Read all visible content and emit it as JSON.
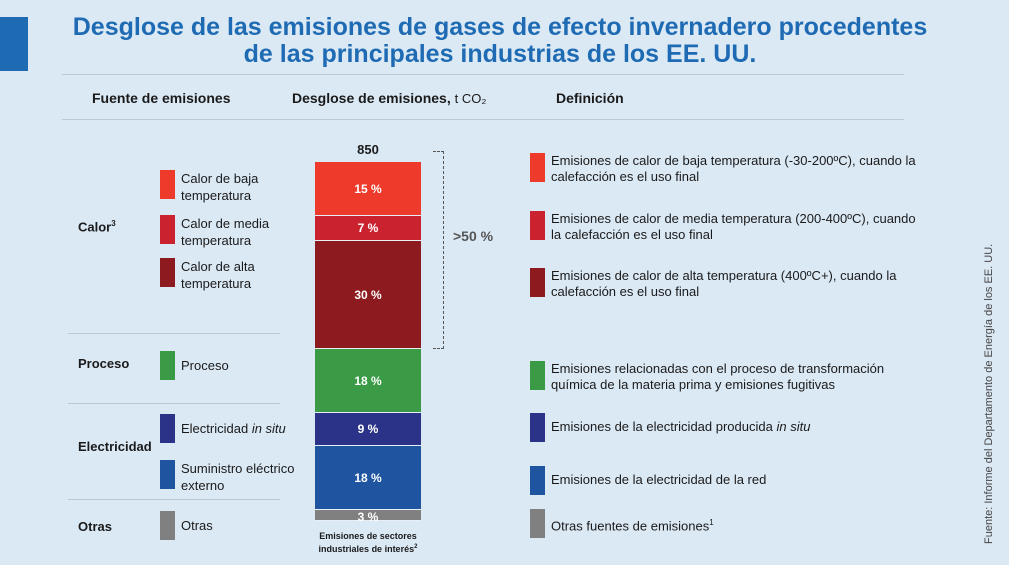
{
  "title": {
    "line1": "Desglose de las emisiones de gases de efecto invernadero procedentes",
    "line2": "de las principales industrias de los EE. UU."
  },
  "headers": {
    "source": "Fuente de emisiones",
    "breakdown": "Desglose de emisiones,",
    "breakdown_unit": "t CO₂",
    "definition": "Definición"
  },
  "categories": {
    "heat": "Calor",
    "heat_note": "3",
    "process": "Proceso",
    "electricity": "Electricidad",
    "other": "Otras"
  },
  "legend": [
    {
      "label": "Calor de baja temperatura",
      "color": "#ee3a2b"
    },
    {
      "label": "Calor de media temperatura",
      "color": "#cb2230"
    },
    {
      "label": "Calor de alta temperatura",
      "color": "#8d1a1f"
    },
    {
      "label": "Proceso",
      "color": "#3a9a46"
    },
    {
      "label_pre": "Electricidad ",
      "label_em": "in situ",
      "color": "#2a3388"
    },
    {
      "label": "Suministro eléctrico externo",
      "color": "#1f55a0"
    },
    {
      "label": "Otras",
      "color": "#808080"
    }
  ],
  "definitions": [
    {
      "text": "Emisiones de calor de baja temperatura (-30-200ºC), cuando la calefacción es el uso final"
    },
    {
      "text": "Emisiones de calor de media temperatura (200-400ºC), cuando la calefacción es el uso final"
    },
    {
      "text": "Emisiones de calor de alta temperatura (400ºC+), cuando la calefacción es el uso final"
    },
    {
      "text": "Emisiones relacionadas con el proceso de transformación química de la materia prima y emisiones fugitivas"
    },
    {
      "text_pre": "Emisiones de la electricidad producida ",
      "text_em": "in situ"
    },
    {
      "text": "Emisiones de la electricidad de la red"
    },
    {
      "text": "Otras fuentes de emisiones",
      "note": "1"
    }
  ],
  "chart_data": {
    "type": "bar",
    "stacked": true,
    "total_label": "850",
    "total": 850,
    "categories": [
      "Emisiones de sectores industriales de interés"
    ],
    "caption_note": "2",
    "series": [
      {
        "name": "Calor de baja temperatura",
        "value": 15,
        "label": "15 %",
        "color": "#ee3a2b"
      },
      {
        "name": "Calor de media temperatura",
        "value": 7,
        "label": "7 %",
        "color": "#cb2230"
      },
      {
        "name": "Calor de alta temperatura",
        "value": 30,
        "label": "30 %",
        "color": "#8d1a1f"
      },
      {
        "name": "Proceso",
        "value": 18,
        "label": "18 %",
        "color": "#3a9a46"
      },
      {
        "name": "Electricidad in situ",
        "value": 9,
        "label": "9 %",
        "color": "#2a3388"
      },
      {
        "name": "Suministro eléctrico externo",
        "value": 18,
        "label": "18 %",
        "color": "#1f55a0"
      },
      {
        "name": "Otras",
        "value": 3,
        "label": "3 %",
        "color": "#808080"
      }
    ],
    "annotation": ">50 %"
  },
  "source": "Fuente: Informe del Departamento de Energía de los EE. UU."
}
